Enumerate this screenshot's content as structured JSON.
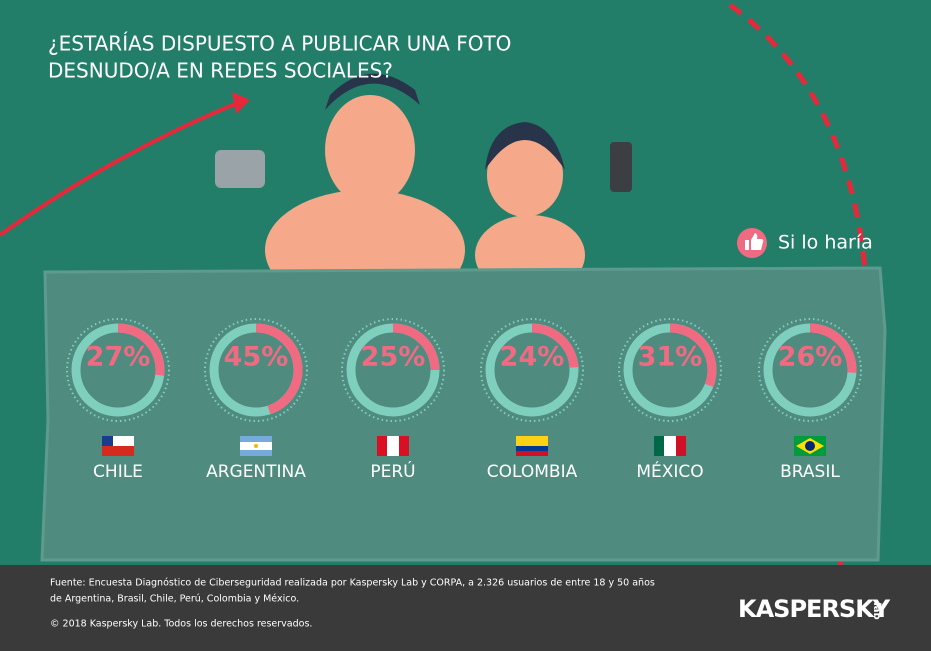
{
  "chart_data": {
    "type": "donut",
    "title": [
      "¿ESTARÍAS DISPUESTO A PUBLICAR UNA FOTO",
      "DESNUDO/A EN REDES SOCIALES?"
    ],
    "categories": [
      "CHILE",
      "ARGENTINA",
      "PERÚ",
      "COLOMBIA",
      "MÉXICO",
      "BRASIL"
    ],
    "series": [
      {
        "name": "Si lo haría",
        "color": "#f06b82",
        "values": [
          27,
          45,
          25,
          24,
          31,
          26
        ],
        "value_labels": [
          "27%",
          "45%",
          "25%",
          "24%",
          "31%",
          "26%"
        ]
      }
    ],
    "track_color": "#7fcfbf"
  },
  "footer": {
    "source": [
      "Fuente: Encuesta Diagnóstico de Ciberseguridad realizada por Kaspersky Lab y CORPA, a 2.326 usuarios de entre 18 y 50 años",
      "de Argentina, Brasil, Chile, Perú, Colombia y México."
    ],
    "copyright": "© 2018 Kaspersky Lab. Todos los derechos reservados.",
    "logo": "KASPERSKY",
    "logo_suffix": "lab"
  }
}
